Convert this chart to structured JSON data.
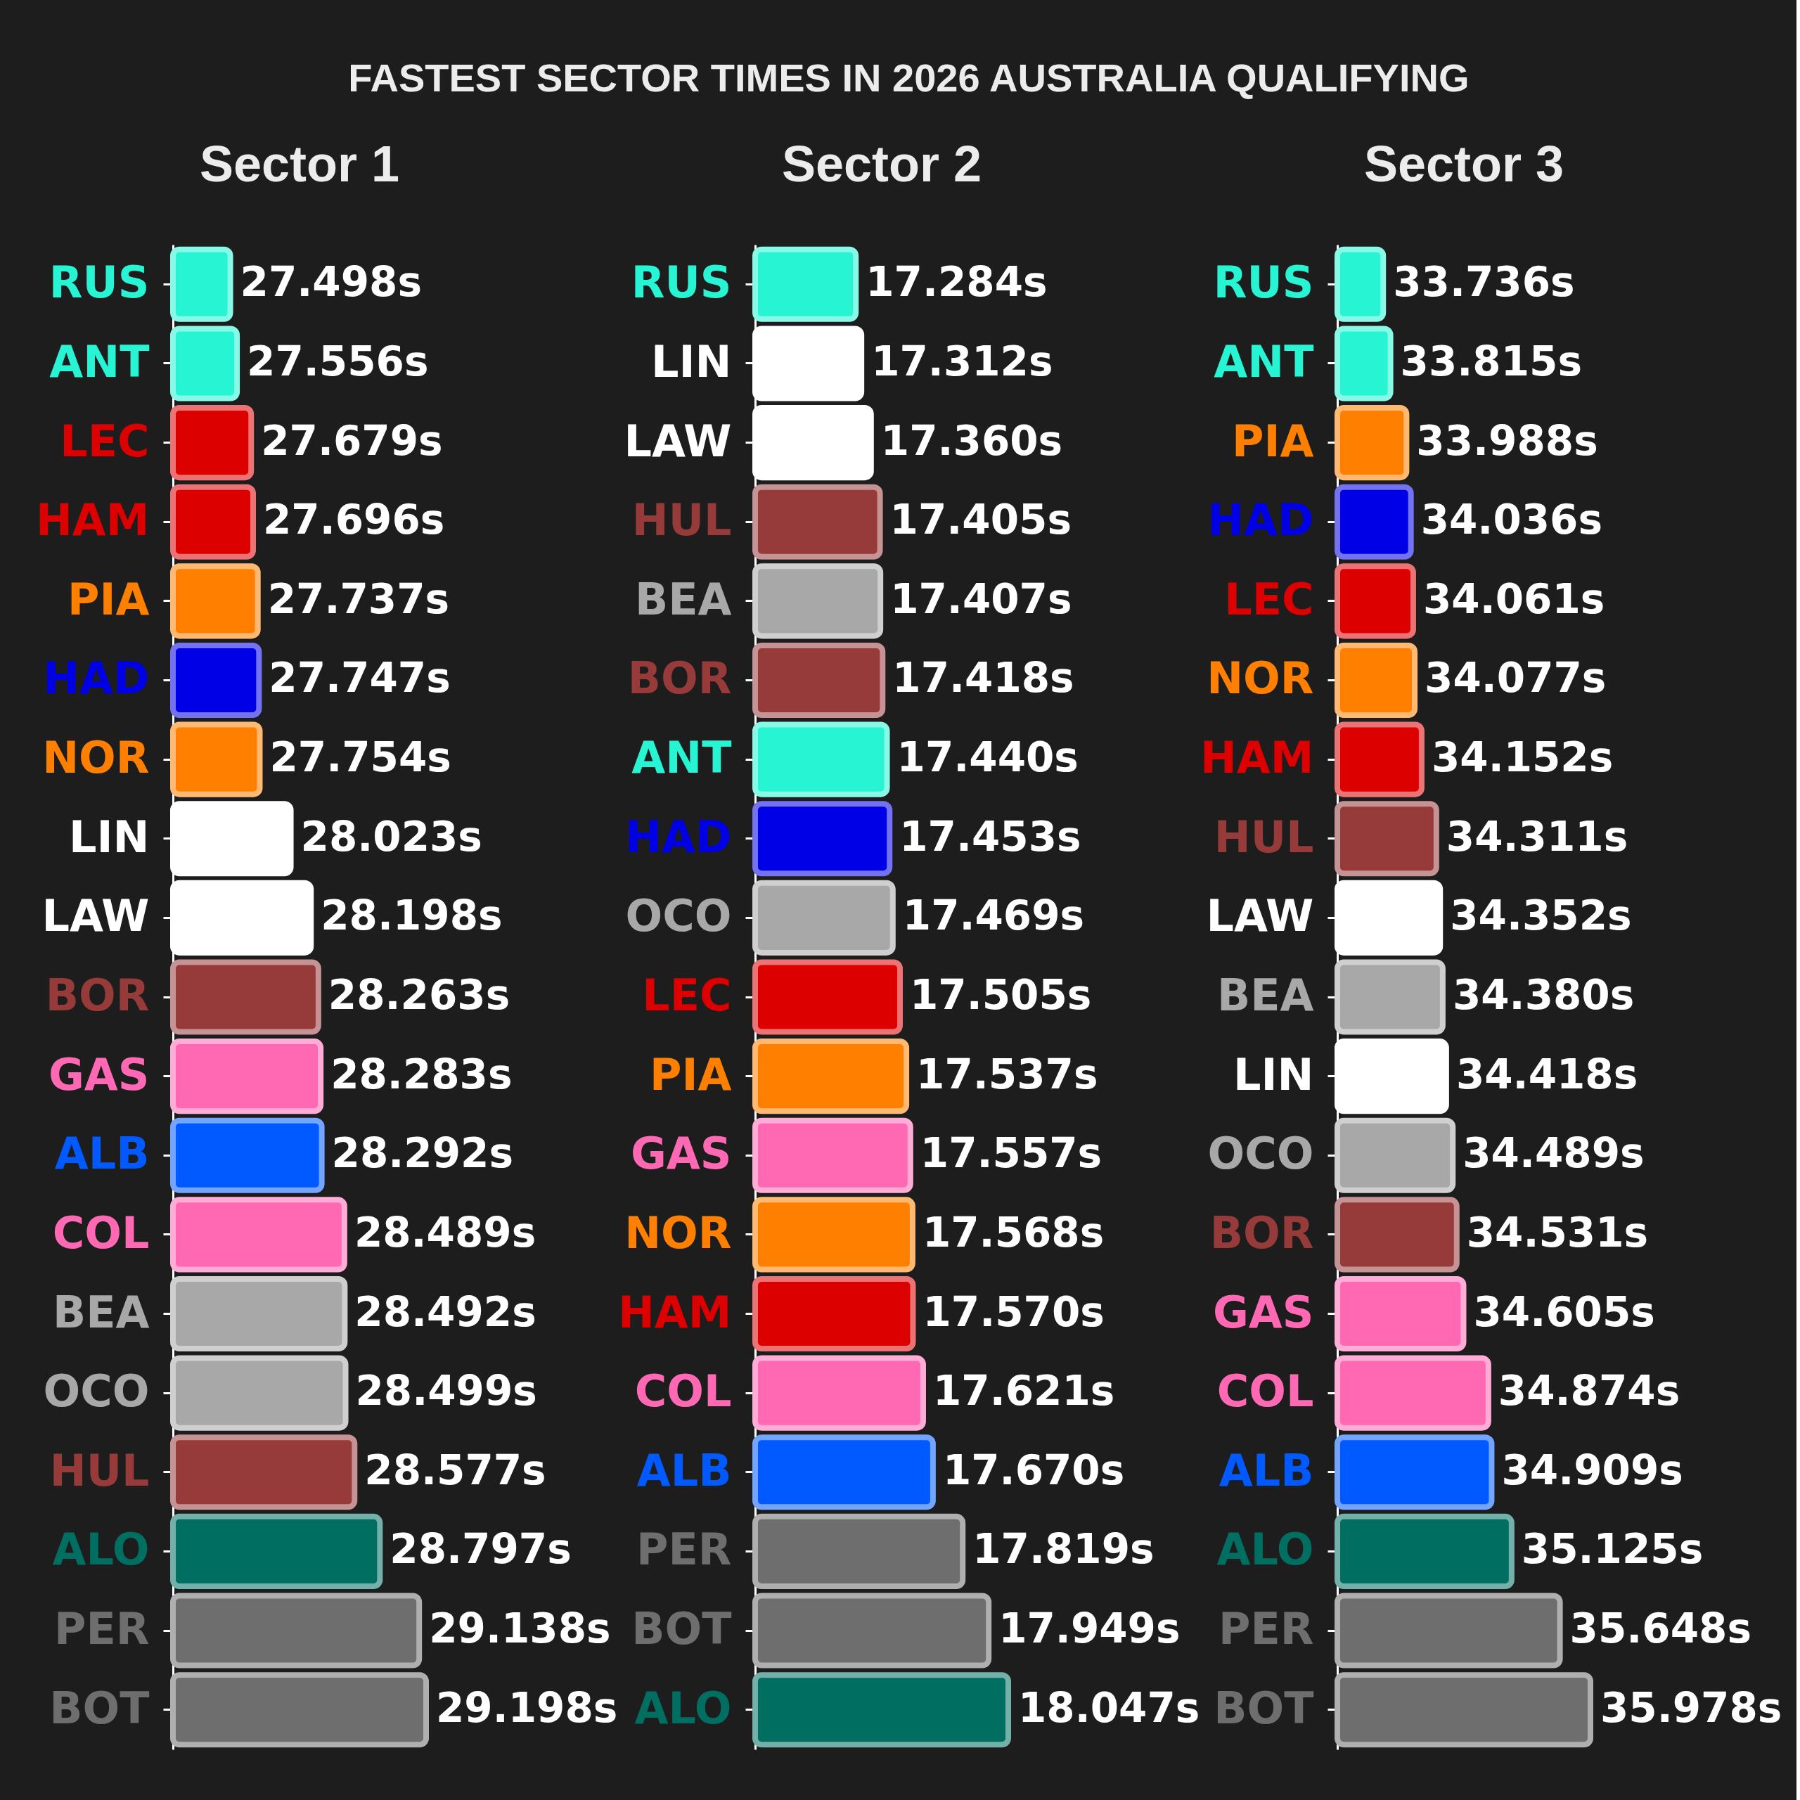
{
  "chart_data": [
    {
      "type": "bar",
      "orientation": "horizontal",
      "title": "FASTEST SECTOR TIMES IN 2026 AUSTRALIA QUALIFYING",
      "subtitle": "Sector 1",
      "tick_labels": "y",
      "categories": [
        "RUS",
        "ANT",
        "LEC",
        "HAM",
        "PIA",
        "HAD",
        "NOR",
        "LIN",
        "LAW",
        "BOR",
        "GAS",
        "ALB",
        "COL",
        "BEA",
        "OCO",
        "HUL",
        "ALO",
        "PER",
        "BOT"
      ],
      "values": [
        27.498,
        27.556,
        27.679,
        27.696,
        27.737,
        27.747,
        27.754,
        28.023,
        28.198,
        28.263,
        28.283,
        28.292,
        28.489,
        28.492,
        28.499,
        28.577,
        28.797,
        29.138,
        29.198
      ],
      "value_labels": [
        "27.498s",
        "27.556s",
        "27.679s",
        "27.696s",
        "27.737s",
        "27.747s",
        "27.754s",
        "28.023s",
        "28.198s",
        "28.263s",
        "28.283s",
        "28.292s",
        "28.489s",
        "28.492s",
        "28.499s",
        "28.577s",
        "28.797s",
        "29.138s",
        "29.198s"
      ],
      "colors": [
        "#27f4d2",
        "#27f4d2",
        "#dc0000",
        "#dc0000",
        "#ff8000",
        "#0000e6",
        "#ff8000",
        "#ffffff",
        "#ffffff",
        "#963a3a",
        "#ff69b4",
        "#005aff",
        "#ff69b4",
        "#a8a8a8",
        "#a8a8a8",
        "#963a3a",
        "#006f62",
        "#6e6e6e",
        "#6e6e6e"
      ],
      "xlim": [
        27.0,
        29.198
      ]
    },
    {
      "type": "bar",
      "orientation": "horizontal",
      "subtitle": "Sector 2",
      "tick_labels": "y",
      "categories": [
        "RUS",
        "LIN",
        "LAW",
        "HUL",
        "BEA",
        "BOR",
        "ANT",
        "HAD",
        "OCO",
        "LEC",
        "PIA",
        "GAS",
        "NOR",
        "HAM",
        "COL",
        "ALB",
        "PER",
        "BOT",
        "ALO"
      ],
      "values": [
        17.284,
        17.312,
        17.36,
        17.405,
        17.407,
        17.418,
        17.44,
        17.453,
        17.469,
        17.505,
        17.537,
        17.557,
        17.568,
        17.57,
        17.621,
        17.67,
        17.819,
        17.949,
        18.047
      ],
      "value_labels": [
        "17.284s",
        "17.312s",
        "17.360s",
        "17.405s",
        "17.407s",
        "17.418s",
        "17.440s",
        "17.453s",
        "17.469s",
        "17.505s",
        "17.537s",
        "17.557s",
        "17.568s",
        "17.570s",
        "17.621s",
        "17.670s",
        "17.819s",
        "17.949s",
        "18.047s"
      ],
      "colors": [
        "#27f4d2",
        "#ffffff",
        "#ffffff",
        "#963a3a",
        "#a8a8a8",
        "#963a3a",
        "#27f4d2",
        "#0000e6",
        "#a8a8a8",
        "#dc0000",
        "#ff8000",
        "#ff69b4",
        "#ff8000",
        "#dc0000",
        "#ff69b4",
        "#005aff",
        "#6e6e6e",
        "#6e6e6e",
        "#006f62"
      ],
      "xlim": [
        16.78,
        18.047
      ]
    },
    {
      "type": "bar",
      "orientation": "horizontal",
      "subtitle": "Sector 3",
      "tick_labels": "y",
      "categories": [
        "RUS",
        "ANT",
        "PIA",
        "HAD",
        "LEC",
        "NOR",
        "HAM",
        "HUL",
        "LAW",
        "BEA",
        "LIN",
        "OCO",
        "BOR",
        "GAS",
        "COL",
        "ALB",
        "ALO",
        "PER",
        "BOT"
      ],
      "values": [
        33.736,
        33.815,
        33.988,
        34.036,
        34.061,
        34.077,
        34.152,
        34.311,
        34.352,
        34.38,
        34.418,
        34.489,
        34.531,
        34.605,
        34.874,
        34.909,
        35.125,
        35.648,
        35.978
      ],
      "value_labels": [
        "33.736s",
        "33.815s",
        "33.988s",
        "34.036s",
        "34.061s",
        "34.077s",
        "34.152s",
        "34.311s",
        "34.352s",
        "34.380s",
        "34.418s",
        "34.489s",
        "34.531s",
        "34.605s",
        "34.874s",
        "34.909s",
        "35.125s",
        "35.648s",
        "35.978s"
      ],
      "colors": [
        "#27f4d2",
        "#27f4d2",
        "#ff8000",
        "#0000e6",
        "#dc0000",
        "#ff8000",
        "#dc0000",
        "#963a3a",
        "#ffffff",
        "#a8a8a8",
        "#ffffff",
        "#a8a8a8",
        "#963a3a",
        "#ff69b4",
        "#ff69b4",
        "#005aff",
        "#006f62",
        "#6e6e6e",
        "#6e6e6e"
      ],
      "xlim": [
        33.24,
        35.978
      ]
    }
  ]
}
